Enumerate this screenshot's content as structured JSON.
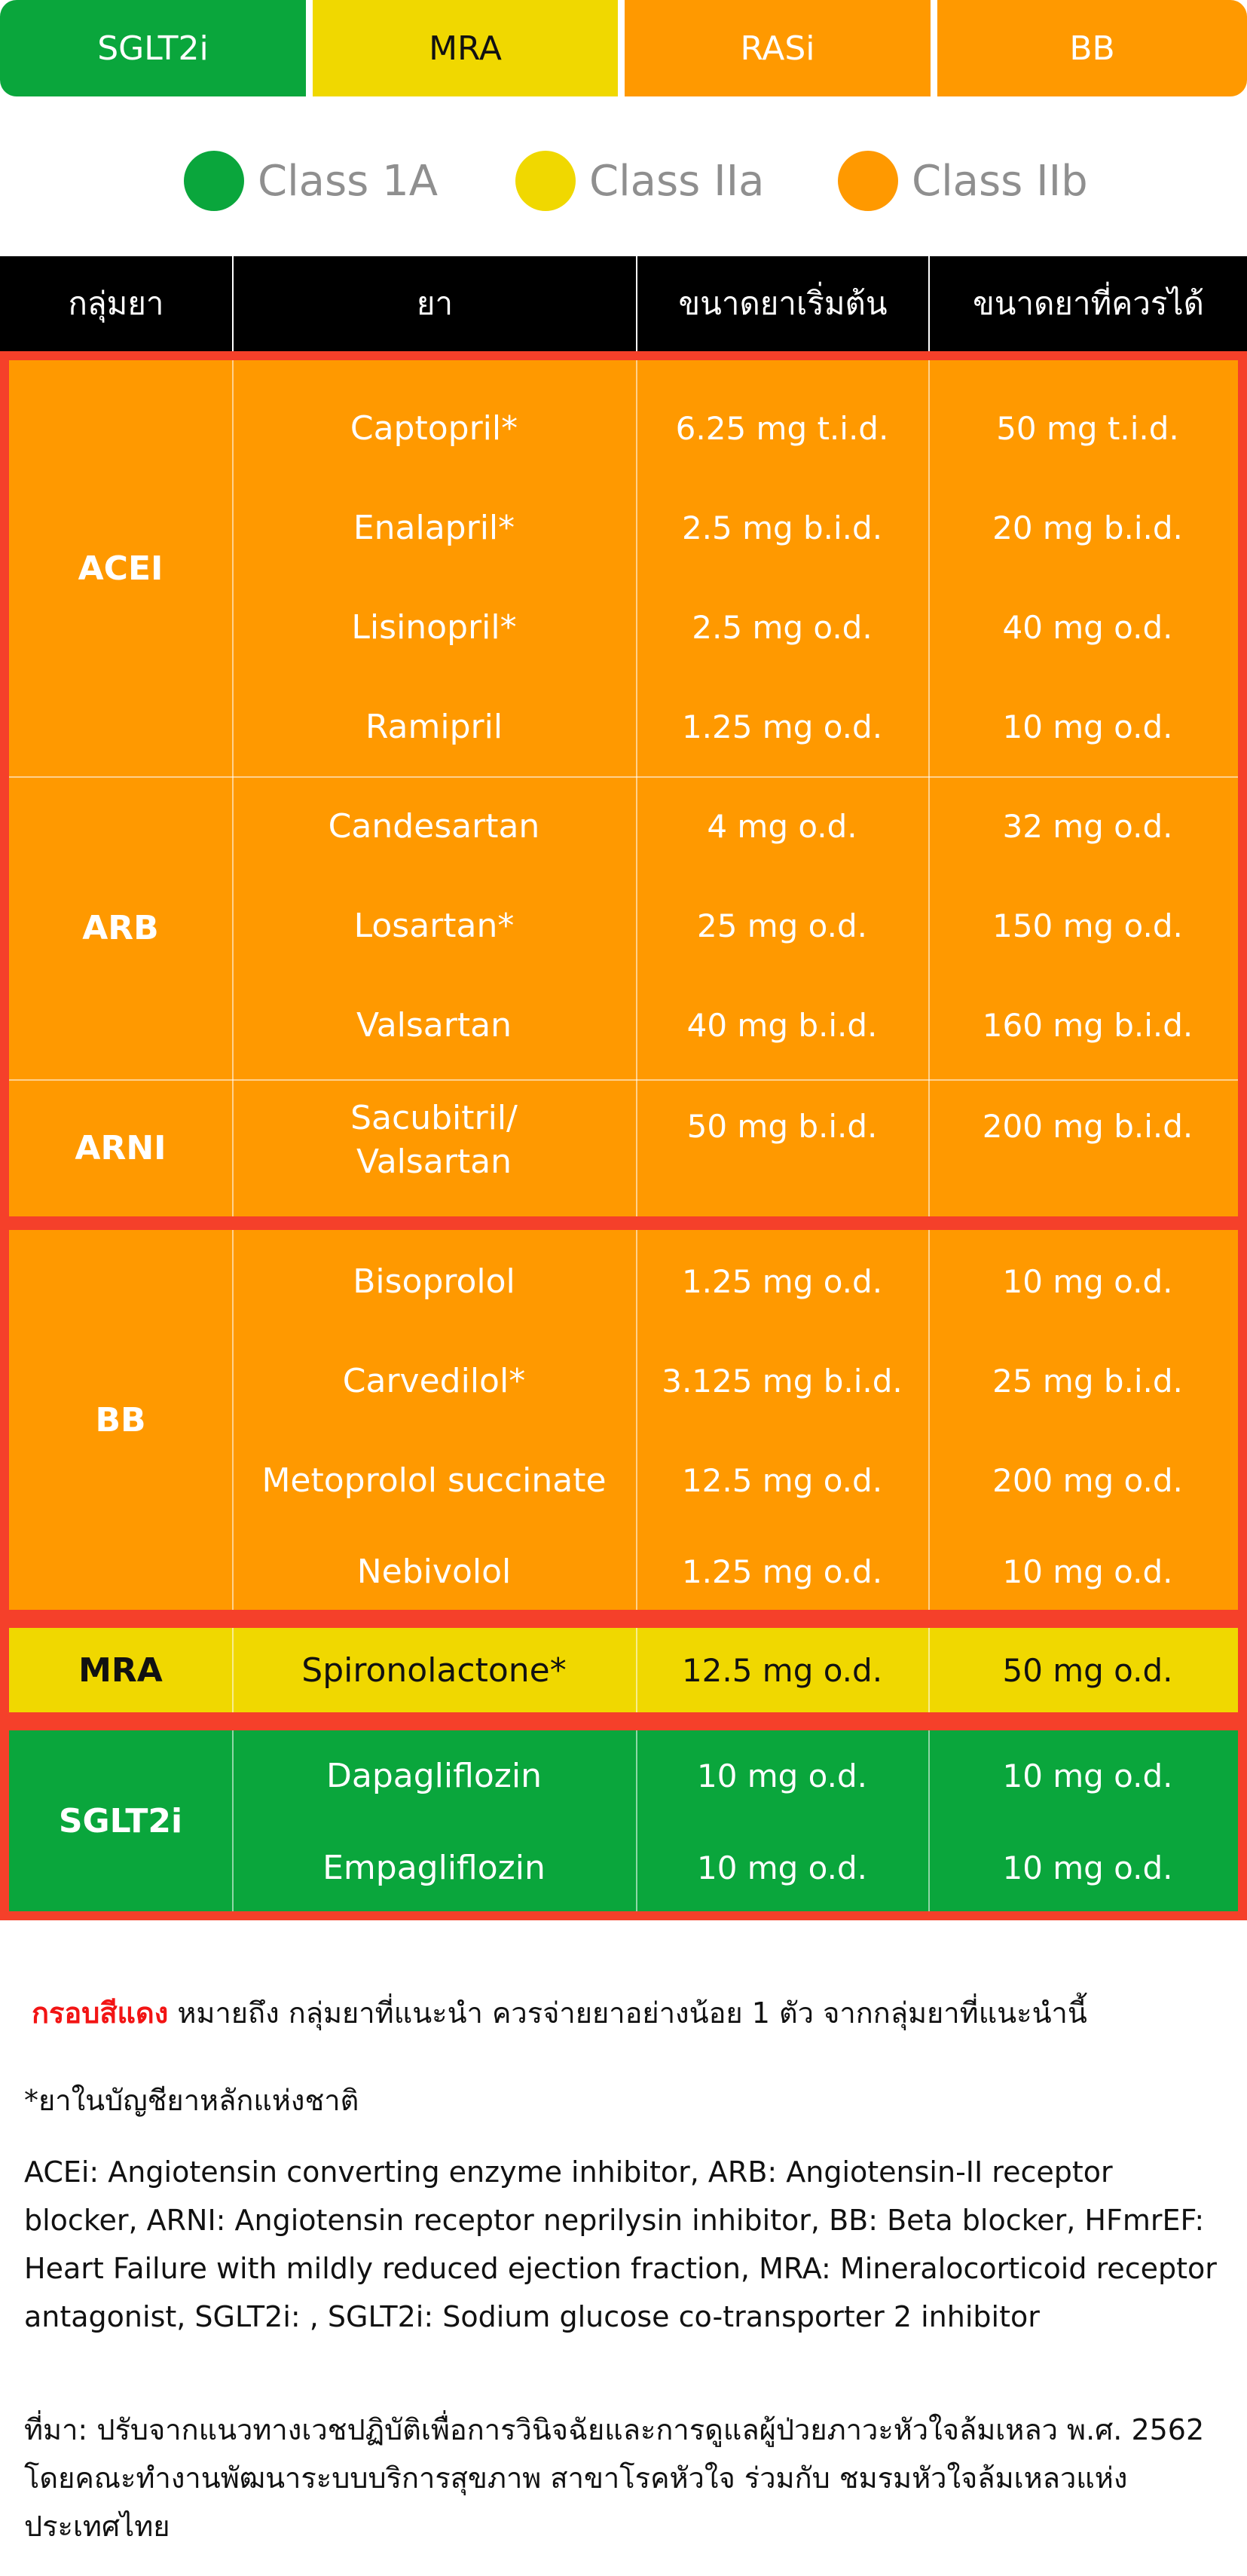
{
  "colors": {
    "green": "#0aa63c",
    "yellow": "#f0d800",
    "orange": "#ff9900",
    "red_border": "#f5402a",
    "header_bg": "#000000"
  },
  "tabs": [
    {
      "label": "SGLT2i",
      "color": "#0aa63c"
    },
    {
      "label": "MRA",
      "color": "#f0d800"
    },
    {
      "label": "RASi",
      "color": "#ff9900"
    },
    {
      "label": "BB",
      "color": "#ff9900"
    }
  ],
  "legend": [
    {
      "label": "Class 1A",
      "color": "#0aa63c"
    },
    {
      "label": "Class IIa",
      "color": "#f0d800"
    },
    {
      "label": "Class IIb",
      "color": "#ff9900"
    }
  ],
  "table": {
    "headers": [
      "กลุ่มยา",
      "ยา",
      "ขนาดยาเริ่มต้น",
      "ขนาดยาที่ควรได้"
    ],
    "groups": [
      {
        "name": "ACEI",
        "drugs": [
          {
            "drug": "Captopril*",
            "start": "6.25 mg t.i.d.",
            "target": "50 mg t.i.d."
          },
          {
            "drug": "Enalapril*",
            "start": "2.5 mg b.i.d.",
            "target": "20 mg b.i.d."
          },
          {
            "drug": "Lisinopril*",
            "start": "2.5 mg o.d.",
            "target": "40 mg o.d."
          },
          {
            "drug": "Ramipril",
            "start": "1.25 mg o.d.",
            "target": "10 mg o.d."
          }
        ]
      },
      {
        "name": "ARB",
        "drugs": [
          {
            "drug": "Candesartan",
            "start": "4 mg o.d.",
            "target": "32 mg o.d."
          },
          {
            "drug": "Losartan*",
            "start": "25 mg o.d.",
            "target": "150 mg o.d."
          },
          {
            "drug": "Valsartan",
            "start": "40 mg b.i.d.",
            "target": "160 mg b.i.d."
          }
        ]
      },
      {
        "name": "ARNI",
        "drugs": [
          {
            "drug_line1": "Sacubitril/",
            "drug_line2": "Valsartan",
            "start": "50 mg b.i.d.",
            "target": "200 mg b.i.d."
          }
        ]
      },
      {
        "name": "BB",
        "drugs": [
          {
            "drug": "Bisoprolol",
            "start": "1.25 mg o.d.",
            "target": "10 mg o.d."
          },
          {
            "drug": "Carvedilol*",
            "start": "3.125 mg b.i.d.",
            "target": "25 mg b.i.d."
          },
          {
            "drug": "Metoprolol succinate",
            "start": "12.5 mg o.d.",
            "target": "200 mg o.d."
          },
          {
            "drug": "Nebivolol",
            "start": "1.25 mg o.d.",
            "target": "10 mg o.d."
          }
        ]
      },
      {
        "name": "MRA",
        "drugs": [
          {
            "drug": "Spironolactone*",
            "start": "12.5 mg o.d.",
            "target": "50 mg o.d."
          }
        ]
      },
      {
        "name": "SGLT2i",
        "drugs": [
          {
            "drug": "Dapagliflozin",
            "start": "10 mg o.d.",
            "target": "10 mg o.d."
          },
          {
            "drug": "Empagliflozin",
            "start": "10 mg o.d.",
            "target": "10 mg o.d."
          }
        ]
      }
    ]
  },
  "notes": {
    "red_frame_label": "กรอบสีแดง",
    "red_frame_text": " หมายถึง กลุ่มยาที่แนะนำ ควรจ่ายยาอย่างน้อย 1 ตัว จากกลุ่มยาที่แนะนำนี้",
    "essential_list": "*ยาในบัญชียาหลักแห่งชาติ",
    "abbreviations": "ACEi: Angiotensin converting enzyme inhibitor, ARB: Angiotensin-II receptor blocker, ARNI: Angiotensin receptor neprilysin inhibitor, BB: Beta blocker, HFmrEF: Heart Failure with mildly reduced ejection fraction, MRA: Mineralocorticoid receptor antagonist, SGLT2i: , SGLT2i: Sodium glucose co-transporter 2 inhibitor",
    "source": "ที่มา: ปรับจากแนวทางเวชปฏิบัติเพื่อการวินิจฉัยและการดูแลผู้ป่วยภาวะหัวใจล้มเหลว พ.ศ. 2562 โดยคณะทำงานพัฒนาระบบบริการสุขภาพ สาขาโรคหัวใจ ร่วมกับ ชมรมหัวใจล้มเหลวแห่งประเทศไทย"
  }
}
